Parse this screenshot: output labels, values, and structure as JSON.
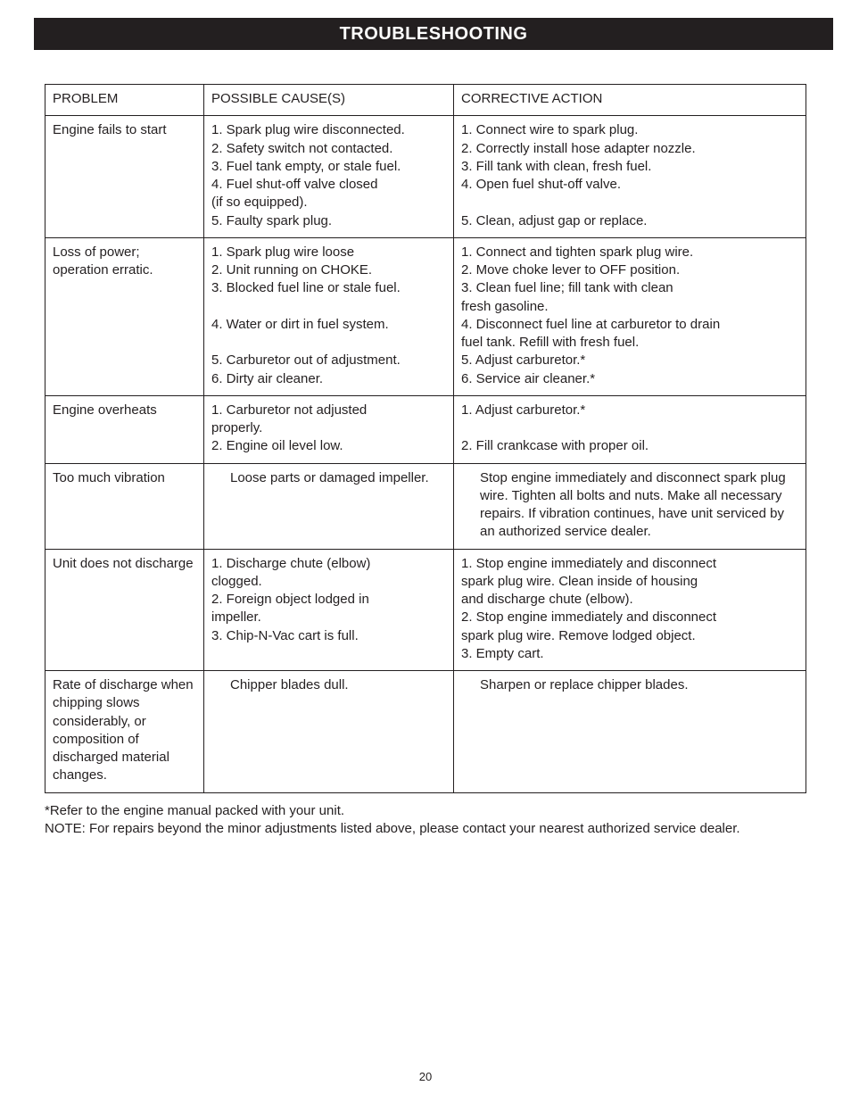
{
  "header": "TROUBLESHOOTING",
  "columns": {
    "problem": "PROBLEM",
    "cause": "POSSIBLE CAUSE(S)",
    "action": "CORRECTIVE ACTION"
  },
  "rows": [
    {
      "problem": "Engine fails to start",
      "causes": [
        "1.  Spark plug wire disconnected.",
        "2.  Safety switch not contacted.",
        "3.  Fuel tank empty, or stale fuel.",
        "4.  Fuel shut-off valve closed",
        "     (if so equipped).",
        "5.  Faulty spark plug."
      ],
      "actions": [
        "1.  Connect wire to spark plug.",
        "2.  Correctly install hose adapter nozzle.",
        "3.  Fill tank with clean, fresh fuel.",
        "4.  Open fuel shut-off valve.",
        "",
        "5.  Clean, adjust gap or replace."
      ]
    },
    {
      "problem": "Loss of power; operation erratic.",
      "causes": [
        "1.  Spark plug wire loose",
        "2.  Unit running on CHOKE.",
        "3.  Blocked fuel line or stale fuel.",
        "",
        "4.  Water or dirt in fuel system.",
        "",
        "5.  Carburetor out of adjustment.",
        "6.  Dirty air cleaner."
      ],
      "actions": [
        "1.  Connect and tighten spark plug wire.",
        "2.  Move choke lever to OFF position.",
        "3.  Clean fuel line; fill tank with clean",
        "     fresh gasoline.",
        "4.  Disconnect fuel line at carburetor to drain",
        "     fuel tank. Refill with fresh fuel.",
        "5.  Adjust carburetor.*",
        "6.  Service air cleaner.*"
      ]
    },
    {
      "problem": "Engine overheats",
      "causes": [
        "1.  Carburetor not adjusted",
        "     properly.",
        "2.  Engine oil level low."
      ],
      "actions": [
        "1.  Adjust carburetor.*",
        "",
        "2.  Fill crankcase with proper oil."
      ]
    },
    {
      "problem": "Too much vibration",
      "cause_plain": "Loose parts or damaged impeller.",
      "action_plain": "Stop engine immediately and disconnect spark plug wire. Tighten all bolts and nuts. Make all necessary repairs. If vibration continues, have unit serviced by an authorized service dealer."
    },
    {
      "problem": "Unit does not discharge",
      "causes": [
        "1.  Discharge chute (elbow)",
        "     clogged.",
        "2.  Foreign object lodged in",
        "     impeller.",
        "3.  Chip-N-Vac cart is full."
      ],
      "actions": [
        "1.  Stop engine immediately and disconnect",
        "     spark plug wire. Clean inside of housing",
        "     and discharge chute (elbow).",
        "2.  Stop engine immediately and disconnect",
        "     spark plug wire. Remove lodged object.",
        "3.  Empty cart."
      ]
    },
    {
      "problem": "Rate of discharge when chipping slows considerably, or composition of discharged material changes.",
      "cause_plain": "Chipper blades dull.",
      "action_plain": "Sharpen or replace chipper blades."
    }
  ],
  "footnote1": "*Refer to the engine manual packed with your unit.",
  "footnote2": "NOTE:  For repairs beyond the minor adjustments listed above, please contact your nearest authorized service dealer.",
  "page_number": "20"
}
